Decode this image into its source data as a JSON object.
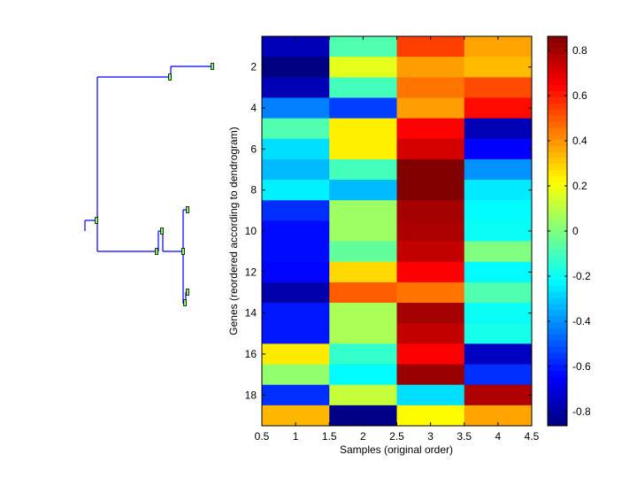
{
  "chart_data": {
    "type": "heatmap",
    "title": "",
    "xlabel": "Samples (original order)",
    "ylabel": "Genes (reordered according to dendrogram)",
    "xlim": [
      0.5,
      4.5
    ],
    "ylim": [
      0.5,
      19.5
    ],
    "x_ticks": [
      "0.5",
      "1",
      "1.5",
      "2",
      "2.5",
      "3",
      "3.5",
      "4",
      "4.5"
    ],
    "y_ticks": [
      "2",
      "4",
      "6",
      "8",
      "10",
      "12",
      "14",
      "16",
      "18"
    ],
    "colormap": "jet",
    "clim": [
      -0.863,
      0.863
    ],
    "colorbar_ticks": [
      "0.8",
      "0.6",
      "0.4",
      "0.2",
      "0",
      "-0.2",
      "-0.4",
      "-0.6",
      "-0.8"
    ],
    "values": [
      [
        -0.77,
        -0.08,
        0.54,
        0.37
      ],
      [
        -0.87,
        0.17,
        0.38,
        0.33
      ],
      [
        -0.77,
        -0.1,
        0.45,
        0.52
      ],
      [
        -0.43,
        -0.54,
        0.38,
        0.63
      ],
      [
        -0.08,
        0.24,
        0.65,
        -0.77
      ],
      [
        -0.27,
        0.24,
        0.72,
        -0.65
      ],
      [
        -0.33,
        -0.1,
        0.87,
        -0.4
      ],
      [
        -0.24,
        -0.33,
        0.87,
        -0.25
      ],
      [
        -0.57,
        0.05,
        0.8,
        -0.22
      ],
      [
        -0.63,
        0.05,
        0.79,
        -0.2
      ],
      [
        -0.63,
        -0.05,
        0.75,
        0.0
      ],
      [
        -0.64,
        0.28,
        0.65,
        -0.22
      ],
      [
        -0.79,
        0.49,
        0.45,
        -0.08
      ],
      [
        -0.61,
        0.07,
        0.8,
        -0.2
      ],
      [
        -0.61,
        0.07,
        0.75,
        -0.18
      ],
      [
        0.25,
        -0.13,
        0.65,
        -0.75
      ],
      [
        0.03,
        -0.22,
        0.82,
        -0.57
      ],
      [
        -0.57,
        0.12,
        -0.27,
        0.78
      ],
      [
        0.34,
        -0.85,
        0.22,
        0.37
      ]
    ]
  },
  "colors": {
    "dendrogram_line": "#0000ff",
    "node_marker": "#80ff60"
  }
}
